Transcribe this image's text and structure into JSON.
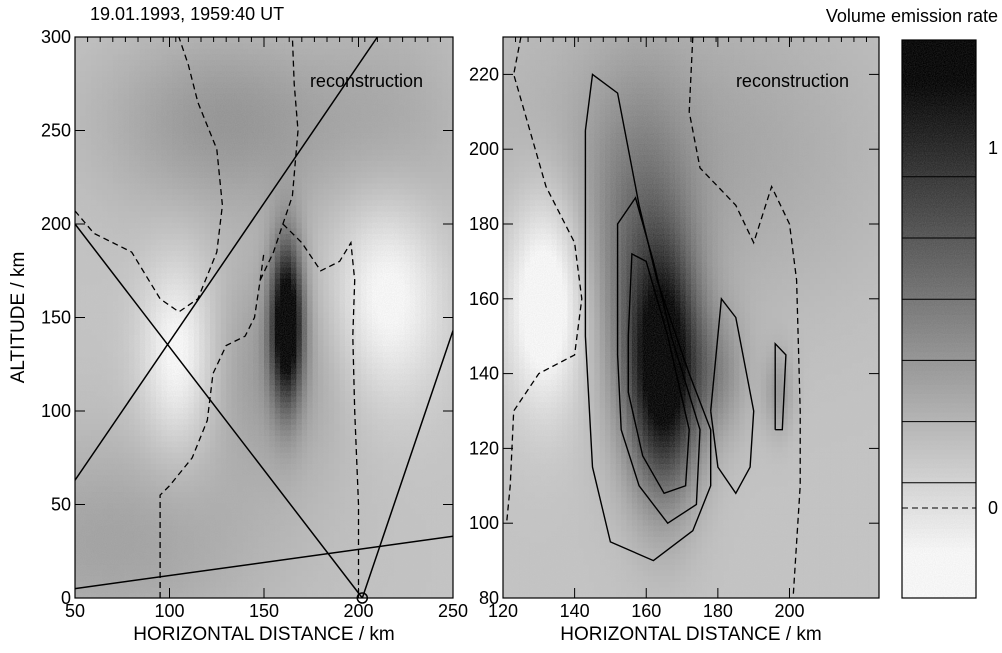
{
  "figure": {
    "timestamp": "19.01.1993, 1959:40 UT",
    "colorbar_title": "Volume emission rate"
  },
  "chart_data": [
    {
      "type": "heatmap",
      "panel": "left",
      "annotation": "reconstruction",
      "xlabel": "HORIZONTAL DISTANCE / km",
      "ylabel": "ALTITUDE / km",
      "xlim": [
        50,
        250
      ],
      "ylim": [
        0,
        300
      ],
      "xticks": [
        50,
        100,
        150,
        200,
        250
      ],
      "yticks": [
        0,
        50,
        100,
        150,
        200,
        250,
        300
      ],
      "emission_blobs": [
        {
          "x": 162,
          "y": 148,
          "sx": 6,
          "sy": 30,
          "amp": 1.2
        },
        {
          "x": 130,
          "y": 255,
          "sx": 45,
          "sy": 35,
          "amp": 0.25
        },
        {
          "x": 155,
          "y": 125,
          "sx": 30,
          "sy": 40,
          "amp": 0.22
        },
        {
          "x": 70,
          "y": 30,
          "sx": 60,
          "sy": 40,
          "amp": 0.18
        },
        {
          "x": 220,
          "y": 230,
          "sx": 30,
          "sy": 60,
          "amp": 0.15
        }
      ],
      "emission_lows": [
        {
          "x": 105,
          "y": 130,
          "sx": 14,
          "sy": 35,
          "amp": 0.35
        },
        {
          "x": 215,
          "y": 165,
          "sx": 22,
          "sy": 40,
          "amp": 0.4
        }
      ],
      "sight_lines": [
        [
          [
            50,
            63
          ],
          [
            210,
            300
          ]
        ],
        [
          [
            50,
            200
          ],
          [
            202,
            0
          ]
        ],
        [
          [
            202,
            0
          ],
          [
            250,
            143
          ]
        ],
        [
          [
            50,
            5
          ],
          [
            250,
            33
          ]
        ]
      ],
      "observer": [
        202,
        0
      ],
      "zero_contours": [
        [
          [
            95,
            0
          ],
          [
            95,
            55
          ],
          [
            100,
            60
          ],
          [
            112,
            75
          ],
          [
            120,
            95
          ],
          [
            123,
            120
          ],
          [
            130,
            135
          ],
          [
            140,
            140
          ],
          [
            145,
            150
          ],
          [
            148,
            170
          ],
          [
            150,
            185
          ]
        ],
        [
          [
            148,
            170
          ],
          [
            155,
            185
          ],
          [
            160,
            200
          ],
          [
            165,
            215
          ],
          [
            168,
            250
          ],
          [
            166,
            275
          ],
          [
            165,
            300
          ]
        ],
        [
          [
            50,
            207
          ],
          [
            60,
            195
          ],
          [
            80,
            185
          ],
          [
            95,
            160
          ],
          [
            105,
            153
          ],
          [
            115,
            160
          ],
          [
            125,
            185
          ],
          [
            128,
            210
          ],
          [
            125,
            240
          ],
          [
            115,
            265
          ],
          [
            110,
            285
          ],
          [
            105,
            300
          ]
        ],
        [
          [
            160,
            200
          ],
          [
            170,
            190
          ],
          [
            180,
            175
          ],
          [
            190,
            180
          ],
          [
            196,
            190
          ],
          [
            198,
            170
          ],
          [
            197,
            140
          ],
          [
            198,
            100
          ],
          [
            200,
            50
          ],
          [
            200,
            0
          ]
        ]
      ]
    },
    {
      "type": "heatmap",
      "panel": "right",
      "annotation": "reconstruction",
      "xlabel": "HORIZONTAL DISTANCE / km",
      "xlim": [
        120,
        225
      ],
      "ylim": [
        80,
        230
      ],
      "xticks": [
        120,
        140,
        160,
        180,
        200
      ],
      "yticks": [
        80,
        100,
        120,
        140,
        160,
        180,
        200,
        220
      ],
      "emission_blobs": [
        {
          "x": 165,
          "y": 140,
          "sx": 7,
          "sy": 22,
          "amp": 1.1
        },
        {
          "x": 158,
          "y": 170,
          "sx": 10,
          "sy": 30,
          "amp": 0.35
        },
        {
          "x": 180,
          "y": 140,
          "sx": 6,
          "sy": 12,
          "amp": 0.25
        },
        {
          "x": 197,
          "y": 135,
          "sx": 3,
          "sy": 8,
          "amp": 0.22
        },
        {
          "x": 170,
          "y": 200,
          "sx": 40,
          "sy": 30,
          "amp": 0.18
        }
      ],
      "emission_lows": [
        {
          "x": 132,
          "y": 160,
          "sx": 8,
          "sy": 20,
          "amp": 0.45
        }
      ],
      "solid_contours": [
        [
          [
            143,
            205
          ],
          [
            145,
            220
          ],
          [
            152,
            215
          ],
          [
            158,
            185
          ],
          [
            163,
            165
          ],
          [
            172,
            140
          ],
          [
            178,
            125
          ],
          [
            178,
            110
          ],
          [
            173,
            98
          ],
          [
            162,
            90
          ],
          [
            150,
            95
          ],
          [
            145,
            115
          ],
          [
            143,
            150
          ],
          [
            143,
            205
          ]
        ],
        [
          [
            152,
            145
          ],
          [
            152,
            180
          ],
          [
            157,
            187
          ],
          [
            162,
            170
          ],
          [
            167,
            150
          ],
          [
            175,
            125
          ],
          [
            174,
            105
          ],
          [
            166,
            100
          ],
          [
            158,
            110
          ],
          [
            153,
            125
          ],
          [
            152,
            145
          ]
        ],
        [
          [
            155,
            150
          ],
          [
            156,
            172
          ],
          [
            160,
            170
          ],
          [
            166,
            150
          ],
          [
            172,
            125
          ],
          [
            171,
            110
          ],
          [
            165,
            108
          ],
          [
            159,
            118
          ],
          [
            155,
            135
          ],
          [
            155,
            150
          ]
        ],
        [
          [
            178,
            130
          ],
          [
            181,
            160
          ],
          [
            185,
            155
          ],
          [
            190,
            130
          ],
          [
            189,
            115
          ],
          [
            185,
            108
          ],
          [
            180,
            115
          ],
          [
            178,
            130
          ]
        ],
        [
          [
            196,
            125
          ],
          [
            196,
            148
          ],
          [
            199,
            145
          ],
          [
            198,
            125
          ],
          [
            196,
            125
          ]
        ]
      ],
      "zero_contours": [
        [
          [
            125,
            230
          ],
          [
            123,
            220
          ],
          [
            126,
            210
          ],
          [
            132,
            190
          ],
          [
            140,
            175
          ],
          [
            142,
            160
          ],
          [
            140,
            145
          ],
          [
            130,
            140
          ],
          [
            123,
            130
          ],
          [
            122,
            110
          ],
          [
            121,
            100
          ]
        ],
        [
          [
            173,
            230
          ],
          [
            172,
            210
          ],
          [
            175,
            195
          ],
          [
            180,
            190
          ],
          [
            185,
            185
          ],
          [
            190,
            175
          ],
          [
            195,
            190
          ],
          [
            200,
            180
          ],
          [
            202,
            165
          ],
          [
            203,
            130
          ],
          [
            203,
            110
          ],
          [
            201,
            80
          ]
        ]
      ]
    }
  ],
  "colorbar": {
    "ticks": [
      {
        "label": "1",
        "value": 1
      },
      {
        "label": "0",
        "value": 0
      }
    ],
    "levels": [
      0.92,
      0.75,
      0.58,
      0.41,
      0.24,
      0.07,
      0.0
    ]
  }
}
